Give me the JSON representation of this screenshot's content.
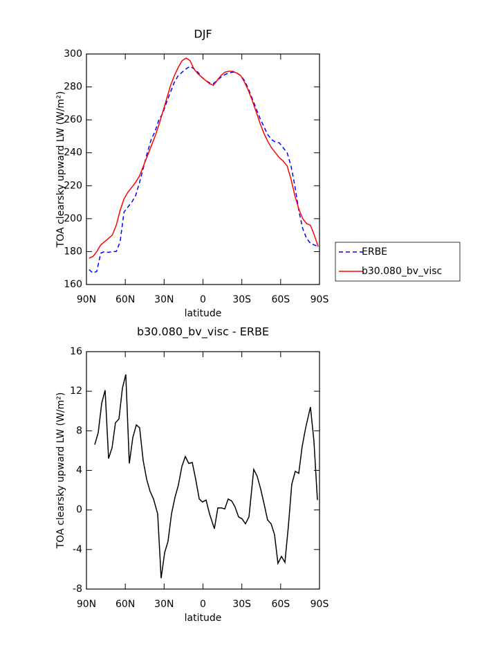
{
  "chart_data": [
    {
      "type": "line",
      "title": "DJF",
      "xlabel": "latitude",
      "ylabel": "TOA clearsky upward LW (W/m²)",
      "x": [
        88,
        85,
        82,
        79,
        76,
        73,
        70,
        67,
        64,
        61,
        58,
        55,
        52,
        49,
        46,
        43,
        40,
        37,
        34,
        31,
        28,
        25,
        22,
        19,
        16,
        13,
        10,
        7,
        4,
        1,
        -2,
        -5,
        -8,
        -11,
        -14,
        -17,
        -20,
        -23,
        -26,
        -29,
        -32,
        -35,
        -38,
        -41,
        -44,
        -47,
        -50,
        -53,
        -56,
        -59,
        -62,
        -65,
        -68,
        -71,
        -74,
        -77,
        -80,
        -83,
        -86,
        -89
      ],
      "series": [
        {
          "name": "ERBE",
          "color": "#0000ff",
          "linestyle": "dashed",
          "values": [
            169,
            167,
            168,
            179,
            180,
            179.5,
            180,
            180,
            186,
            204,
            207,
            210,
            214,
            222,
            231,
            240,
            248,
            253,
            260,
            264,
            271,
            277,
            283,
            287,
            289,
            291,
            292.5,
            291,
            289,
            286,
            284,
            282.5,
            282,
            284,
            286,
            287.5,
            288.5,
            289,
            288.5,
            287,
            284,
            279,
            273,
            267,
            261,
            256,
            251,
            248,
            246.5,
            246,
            243,
            240,
            232,
            220,
            205,
            194,
            188,
            185,
            184,
            183
          ]
        },
        {
          "name": "b30.080_bv_visc",
          "color": "#ff0000",
          "linestyle": "solid",
          "values": [
            176,
            177,
            180,
            184,
            186,
            188,
            190,
            196,
            205,
            212,
            216,
            219,
            222,
            226,
            232,
            238,
            244,
            250,
            257,
            265,
            273,
            281,
            287,
            292,
            296,
            297.5,
            296,
            291,
            288,
            286,
            284,
            282,
            281,
            284,
            287,
            289,
            289.5,
            289.5,
            288.5,
            287,
            283,
            278,
            272,
            265,
            258,
            252,
            247,
            243,
            240,
            237,
            235,
            232,
            224,
            214,
            206,
            200,
            197,
            196,
            190,
            183
          ]
        }
      ],
      "xlim": [
        90,
        -90
      ],
      "xticks": [
        {
          "value": 90,
          "label": "90N"
        },
        {
          "value": 60,
          "label": "60N"
        },
        {
          "value": 30,
          "label": "30N"
        },
        0,
        {
          "value": -30,
          "label": "30S"
        },
        {
          "value": -60,
          "label": "60S"
        },
        {
          "value": -90,
          "label": "90S"
        }
      ],
      "ylim": [
        160,
        300
      ],
      "yticks": [
        160,
        180,
        200,
        220,
        240,
        260,
        280,
        300
      ],
      "legend": "right"
    },
    {
      "type": "line",
      "title": "b30.080_bv_visc - ERBE",
      "xlabel": "latitude",
      "ylabel": "TOA clearsky upward LW (W/m²)",
      "x": [
        83.6,
        80.9,
        78.2,
        75.6,
        72.9,
        70.2,
        67.6,
        64.9,
        62.2,
        59.6,
        56.9,
        54.2,
        51.5,
        48.9,
        46.2,
        43.5,
        40.9,
        38.2,
        35.0,
        32.3,
        29.6,
        27.0,
        24.3,
        21.6,
        19.0,
        16.3,
        13.6,
        11.0,
        8.3,
        5.6,
        2.9,
        0.3,
        -2.4,
        -5.1,
        -8.8,
        -11.5,
        -14.2,
        -16.8,
        -19.5,
        -22.2,
        -24.8,
        -27.5,
        -30.2,
        -32.8,
        -35.5,
        -39.2,
        -41.9,
        -44.6,
        -47.2,
        -49.9,
        -52.6,
        -55.3,
        -57.9,
        -60.6,
        -63.3,
        -65.9,
        -68.6,
        -71.3,
        -74.0,
        -76.6,
        -79.3,
        -83.0,
        -85.7,
        -88.4
      ],
      "values": [
        6.6,
        7.8,
        10.8,
        12.1,
        5.2,
        6.3,
        8.8,
        9.2,
        12.3,
        13.7,
        4.7,
        7.3,
        8.6,
        8.3,
        5.0,
        3.1,
        1.9,
        1.1,
        -0.4,
        -6.9,
        -4.3,
        -3.2,
        -0.4,
        1.3,
        2.5,
        4.4,
        5.4,
        4.7,
        4.8,
        3.1,
        1.1,
        0.8,
        1.0,
        -0.4,
        -1.9,
        0.2,
        0.2,
        0.1,
        1.1,
        0.9,
        0.3,
        -0.7,
        -0.9,
        -1.4,
        -0.7,
        4.1,
        3.4,
        2.1,
        0.6,
        -1.0,
        -1.4,
        -2.5,
        -5.4,
        -4.7,
        -5.3,
        -1.7,
        2.6,
        3.9,
        3.7,
        6.4,
        8.3,
        10.4,
        7.0,
        1.0
      ],
      "color": "#000000",
      "xlim": [
        90,
        -90
      ],
      "xticks": [
        {
          "value": 90,
          "label": "90N"
        },
        {
          "value": 60,
          "label": "60N"
        },
        {
          "value": 30,
          "label": "30N"
        },
        0,
        {
          "value": -30,
          "label": "30S"
        },
        {
          "value": -60,
          "label": "60S"
        },
        {
          "value": -90,
          "label": "90S"
        }
      ],
      "ylim": [
        -8,
        16
      ],
      "yticks": [
        -8,
        -4,
        0,
        4,
        8,
        12,
        16
      ]
    }
  ]
}
